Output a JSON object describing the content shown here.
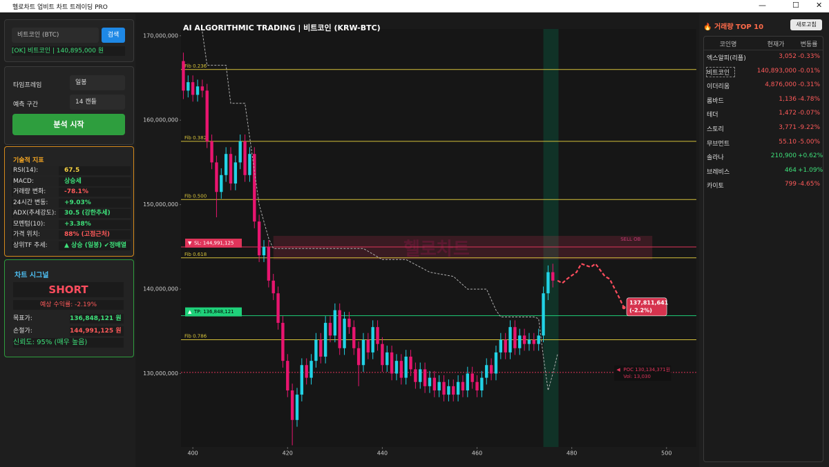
{
  "app": {
    "title_bar": "헬로차트 업비트 차트 트레이딩 PRO",
    "search": {
      "input": "비트코인 (BTC)",
      "button": "검색",
      "status": "[OK] 비트코인 | 140,895,000 원"
    },
    "settings": {
      "timeframe_label": "타임프레임",
      "timeframe": "일봉",
      "horizon_label": "예측 구간",
      "horizon": "14 캔들",
      "button": "분석 시작"
    },
    "indicators": {
      "title": "기술적 지표",
      "rows": [
        {
          "label": "RSI(14):",
          "value": "67.5",
          "color": "#f5d142"
        },
        {
          "label": "MACD:",
          "value": "상승세",
          "color": "#3ee07a"
        },
        {
          "label": "거래량 변화:",
          "value": "-78.1%",
          "color": "#ff5a5a"
        },
        {
          "label": "24시간 변동:",
          "value": "+9.03%",
          "color": "#3ee07a"
        },
        {
          "label": "ADX(추세강도):",
          "value": "30.5 (강한추세)",
          "color": "#3ee07a"
        },
        {
          "label": "모멘텀(10):",
          "value": "+3.38%",
          "color": "#3ee07a"
        },
        {
          "label": "가격 위치:",
          "value": "88% (고점근처)",
          "color": "#ff5a5a"
        },
        {
          "label": "상위TF 추세:",
          "value": "▲ 상승 (일봉) ✔정배열",
          "color": "#3ee07a"
        }
      ]
    },
    "signal": {
      "title": "차트 시그널",
      "signal": "SHORT",
      "expected": "예상 수익률: -2.19%",
      "target_label": "목표가:",
      "target": "136,848,121 원",
      "stop_label": "손절가:",
      "stop": "144,991,125 원",
      "confidence": "신뢰도: 95% (매우 높음)"
    },
    "top10": {
      "title": "거래량 TOP 10",
      "refresh": "새로고침",
      "headers": [
        "코인명",
        "현재가",
        "변동률"
      ],
      "rows": [
        [
          "엑스알피(리플)",
          "3,052",
          "-0.33%"
        ],
        [
          "비트코인",
          "140,893,000",
          "-0.01%"
        ],
        [
          "이더리움",
          "4,876,000",
          "-0.31%"
        ],
        [
          "롬바드",
          "1,136",
          "-4.78%"
        ],
        [
          "테더",
          "1,472",
          "-0.07%"
        ],
        [
          "스토리",
          "3,771",
          "-9.22%"
        ],
        [
          "무브먼트",
          "55.10",
          "-5.00%"
        ],
        [
          "솔라나",
          "210,900",
          "+0.62%"
        ],
        [
          "브레비스",
          "464",
          "+1.09%"
        ],
        [
          "카이토",
          "799",
          "-4.65%"
        ]
      ]
    }
  },
  "chart_data": {
    "type": "candlestick",
    "title": "AI ALGORITHMIC TRADING | 비트코인 (KRW-BTC)",
    "watermark": "헬로차트",
    "xlim": [
      397.5,
      506.3
    ],
    "ylim": [
      121300000,
      170800000
    ],
    "xticks": [
      400,
      420,
      440,
      460,
      480,
      500
    ],
    "yticks": [
      {
        "value": 130000000,
        "label": "130,000,000"
      },
      {
        "value": 140000000,
        "label": "140,000,000"
      },
      {
        "value": 150000000,
        "label": "150,000,000"
      },
      {
        "value": 160000000,
        "label": "160,000,000"
      },
      {
        "value": 170000000,
        "label": "170,000,000"
      }
    ],
    "up_color": "#22d3e6",
    "down_color": "#e8156f",
    "x": [
      398,
      399,
      400,
      401,
      402,
      403,
      404,
      405,
      406,
      407,
      408,
      409,
      410,
      411,
      412,
      413,
      414,
      415,
      416,
      417,
      418,
      419,
      420,
      421,
      422,
      423,
      424,
      425,
      426,
      427,
      428,
      429,
      430,
      431,
      432,
      433,
      434,
      435,
      436,
      437,
      438,
      439,
      440,
      441,
      442,
      443,
      444,
      445,
      446,
      447,
      448,
      449,
      450,
      451,
      452,
      453,
      454,
      455,
      456,
      457,
      458,
      459,
      460,
      461,
      462,
      463,
      464,
      465,
      466,
      467,
      468,
      469,
      470,
      471,
      472,
      473,
      474,
      475,
      476
    ],
    "open": [
      167000000,
      163500000,
      164500000,
      163000000,
      164000000,
      163500000,
      157500000,
      155000000,
      151500000,
      153500000,
      156000000,
      152500000,
      155000000,
      157500000,
      153500000,
      156000000,
      148000000,
      144000000,
      145000000,
      141000000,
      139500000,
      136000000,
      131500000,
      128000000,
      124500000,
      127500000,
      131000000,
      129500000,
      131500000,
      134000000,
      132000000,
      136000000,
      134500000,
      137500000,
      133000000,
      136500000,
      135500000,
      133000000,
      131000000,
      134000000,
      132500000,
      135500000,
      133500000,
      131000000,
      132500000,
      130000000,
      131500000,
      129500000,
      132000000,
      130500000,
      129000000,
      130500000,
      128500000,
      129500000,
      128000000,
      129000000,
      127500000,
      128500000,
      127500000,
      129000000,
      128000000,
      130000000,
      129000000,
      128000000,
      129500000,
      131000000,
      130000000,
      132500000,
      134000000,
      132500000,
      135500000,
      133000000,
      134500000,
      133500000,
      134000000,
      133500000,
      134500000,
      139500000,
      142000000
    ],
    "high": [
      168000000,
      165300000,
      165300000,
      164800000,
      164800000,
      164300000,
      158300000,
      155800000,
      154300000,
      156800000,
      156800000,
      155800000,
      158300000,
      158300000,
      156800000,
      156800000,
      148800000,
      145800000,
      145800000,
      141800000,
      140300000,
      136800000,
      132300000,
      128800000,
      128300000,
      131800000,
      131800000,
      132300000,
      134800000,
      134800000,
      136800000,
      136800000,
      138300000,
      138300000,
      137300000,
      137300000,
      136300000,
      133800000,
      134800000,
      134800000,
      136300000,
      136300000,
      134300000,
      133300000,
      133300000,
      132300000,
      132300000,
      132800000,
      132800000,
      131300000,
      131300000,
      131300000,
      130300000,
      130300000,
      129800000,
      129800000,
      129300000,
      129300000,
      129800000,
      129800000,
      130800000,
      130800000,
      129800000,
      130300000,
      131800000,
      131800000,
      133300000,
      134800000,
      134800000,
      136300000,
      136300000,
      135300000,
      135300000,
      134800000,
      134800000,
      135300000,
      140300000,
      142800000,
      143000000
    ],
    "low": [
      162500000,
      162700000,
      162200000,
      162200000,
      162700000,
      156700000,
      154200000,
      148500000,
      150700000,
      152700000,
      151700000,
      151700000,
      154200000,
      152700000,
      152700000,
      147200000,
      143200000,
      143200000,
      140200000,
      138700000,
      135200000,
      130700000,
      127200000,
      121500000,
      123700000,
      126700000,
      128700000,
      128700000,
      130700000,
      131200000,
      131200000,
      133700000,
      133700000,
      132200000,
      132200000,
      134700000,
      132200000,
      128500000,
      130200000,
      131700000,
      131700000,
      132700000,
      130200000,
      130200000,
      129200000,
      129200000,
      128700000,
      128700000,
      129700000,
      128200000,
      128200000,
      127700000,
      127700000,
      127200000,
      127200000,
      126700000,
      126700000,
      126700000,
      126700000,
      127200000,
      127200000,
      128200000,
      127200000,
      127200000,
      128700000,
      129200000,
      129200000,
      131700000,
      131700000,
      131700000,
      132200000,
      132200000,
      132700000,
      132700000,
      132700000,
      132700000,
      133700000,
      138700000,
      140200000
    ],
    "close": [
      163500000,
      164500000,
      163000000,
      164000000,
      163500000,
      157500000,
      155000000,
      151500000,
      153500000,
      156000000,
      152500000,
      155000000,
      157500000,
      153500000,
      156000000,
      148000000,
      144000000,
      145000000,
      141000000,
      139500000,
      136000000,
      131500000,
      128000000,
      124500000,
      127500000,
      131000000,
      129500000,
      131500000,
      134000000,
      132000000,
      136000000,
      134500000,
      137500000,
      133000000,
      136500000,
      135500000,
      133000000,
      131000000,
      134000000,
      132500000,
      135500000,
      133500000,
      131000000,
      132500000,
      130000000,
      131500000,
      129500000,
      132000000,
      130500000,
      129000000,
      130500000,
      128500000,
      129500000,
      128000000,
      129000000,
      127500000,
      128500000,
      127500000,
      129000000,
      128000000,
      130000000,
      129000000,
      128000000,
      129500000,
      131000000,
      130000000,
      132500000,
      134000000,
      132500000,
      135500000,
      133000000,
      134500000,
      133500000,
      134000000,
      133500000,
      134500000,
      139500000,
      142000000,
      141000000
    ],
    "lines": [
      {
        "color": "#b0b0b0",
        "dash": true,
        "x": [
          402,
          403,
          404,
          405,
          406,
          407,
          408,
          410,
          411,
          412,
          413,
          414,
          415,
          416,
          417,
          420,
          436,
          440,
          445,
          450,
          455,
          458,
          462,
          464,
          465,
          472,
          473,
          474,
          475,
          476,
          477
        ],
        "values": [
          170500000,
          166500000,
          166500000,
          166500000,
          166500000,
          166500000,
          162000000,
          162000000,
          162000000,
          158000000,
          154000000,
          150000000,
          148000000,
          146000000,
          144800000,
          144800000,
          144800000,
          143500000,
          143500000,
          142000000,
          141500000,
          140000000,
          140000000,
          137500000,
          136700000,
          136700000,
          136500000,
          132000000,
          128000000,
          130000000,
          132300000
        ]
      },
      {
        "color": "#ff4d5e",
        "dash": true,
        "x": [
          477,
          478,
          479,
          481,
          482,
          484,
          485,
          487,
          488,
          490,
          491
        ],
        "values": [
          141000000,
          140700000,
          141200000,
          142000000,
          143000000,
          142600000,
          143000000,
          141500000,
          141200000,
          139000000,
          137811641
        ],
        "end_label": "137,811,641",
        "end_change": "(-2.2%)"
      }
    ],
    "hlines": [
      {
        "label": "Fib 0.236",
        "value": 166000000,
        "color": "#d6c23a"
      },
      {
        "label": "Fib 0.382",
        "value": 157500000,
        "color": "#d6c23a"
      },
      {
        "label": "Fib 0.500",
        "value": 150600000,
        "color": "#d6c23a"
      },
      {
        "label": "Fib 0.618",
        "value": 143700000,
        "color": "#d6c23a"
      },
      {
        "label": "Fib 0.786",
        "value": 134000000,
        "color": "#d6c23a"
      },
      {
        "label": "SL: 144,991,125",
        "value": 144991125,
        "color": "#e0345a"
      },
      {
        "label": "TP: 136,848,121",
        "value": 136848121,
        "color": "#1fd17a"
      },
      {
        "label": "POC 130,134,371원",
        "value": 130134371,
        "color": "#e0345a",
        "note": "Vol: 13,030"
      }
    ],
    "zone": {
      "label": "SELL OB",
      "x": [
        417,
        497
      ],
      "y": [
        143500000,
        146300000
      ]
    },
    "highlight": [
      474,
      477.2
    ]
  }
}
